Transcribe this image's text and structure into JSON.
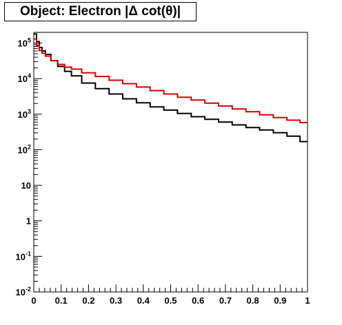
{
  "chart_data": {
    "type": "line",
    "title": "Object: Electron |Δ cot(θ)|",
    "xlabel": "",
    "ylabel": "",
    "xlim": [
      0,
      1
    ],
    "ylim": [
      0.01,
      200000
    ],
    "yscale": "log",
    "grid": false,
    "x_ticks": [
      "0",
      "0.1",
      "0.2",
      "0.3",
      "0.4",
      "0.5",
      "0.6",
      "0.7",
      "0.8",
      "0.9",
      "1"
    ],
    "y_ticks": [
      {
        "base": "10",
        "exp": "-2",
        "value": 0.01
      },
      {
        "base": "10",
        "exp": "-1",
        "value": 0.1
      },
      {
        "base": "1",
        "exp": "",
        "value": 1
      },
      {
        "base": "10",
        "exp": "",
        "value": 10
      },
      {
        "base": "10",
        "exp": "2",
        "value": 100
      },
      {
        "base": "10",
        "exp": "3",
        "value": 1000
      },
      {
        "base": "10",
        "exp": "4",
        "value": 10000
      },
      {
        "base": "10",
        "exp": "5",
        "value": 100000
      }
    ],
    "x": [
      0.005,
      0.015,
      0.025,
      0.035,
      0.05,
      0.075,
      0.1,
      0.125,
      0.15,
      0.2,
      0.25,
      0.3,
      0.35,
      0.4,
      0.45,
      0.5,
      0.55,
      0.6,
      0.65,
      0.7,
      0.75,
      0.8,
      0.85,
      0.9,
      0.95,
      0.995
    ],
    "series": [
      {
        "color": "#000000",
        "values": [
          180000,
          110000,
          75000,
          60000,
          48000,
          32000,
          22000,
          16000,
          12000,
          7500,
          5200,
          3700,
          2700,
          2100,
          1600,
          1300,
          1050,
          850,
          720,
          600,
          500,
          420,
          360,
          300,
          240,
          170
        ]
      },
      {
        "color": "#d40000",
        "values": [
          130000,
          85000,
          62000,
          52000,
          43000,
          32000,
          25000,
          21000,
          18500,
          14500,
          11500,
          9000,
          7200,
          5800,
          4600,
          3700,
          3000,
          2500,
          2050,
          1700,
          1400,
          1170,
          960,
          800,
          680,
          580
        ]
      }
    ]
  }
}
